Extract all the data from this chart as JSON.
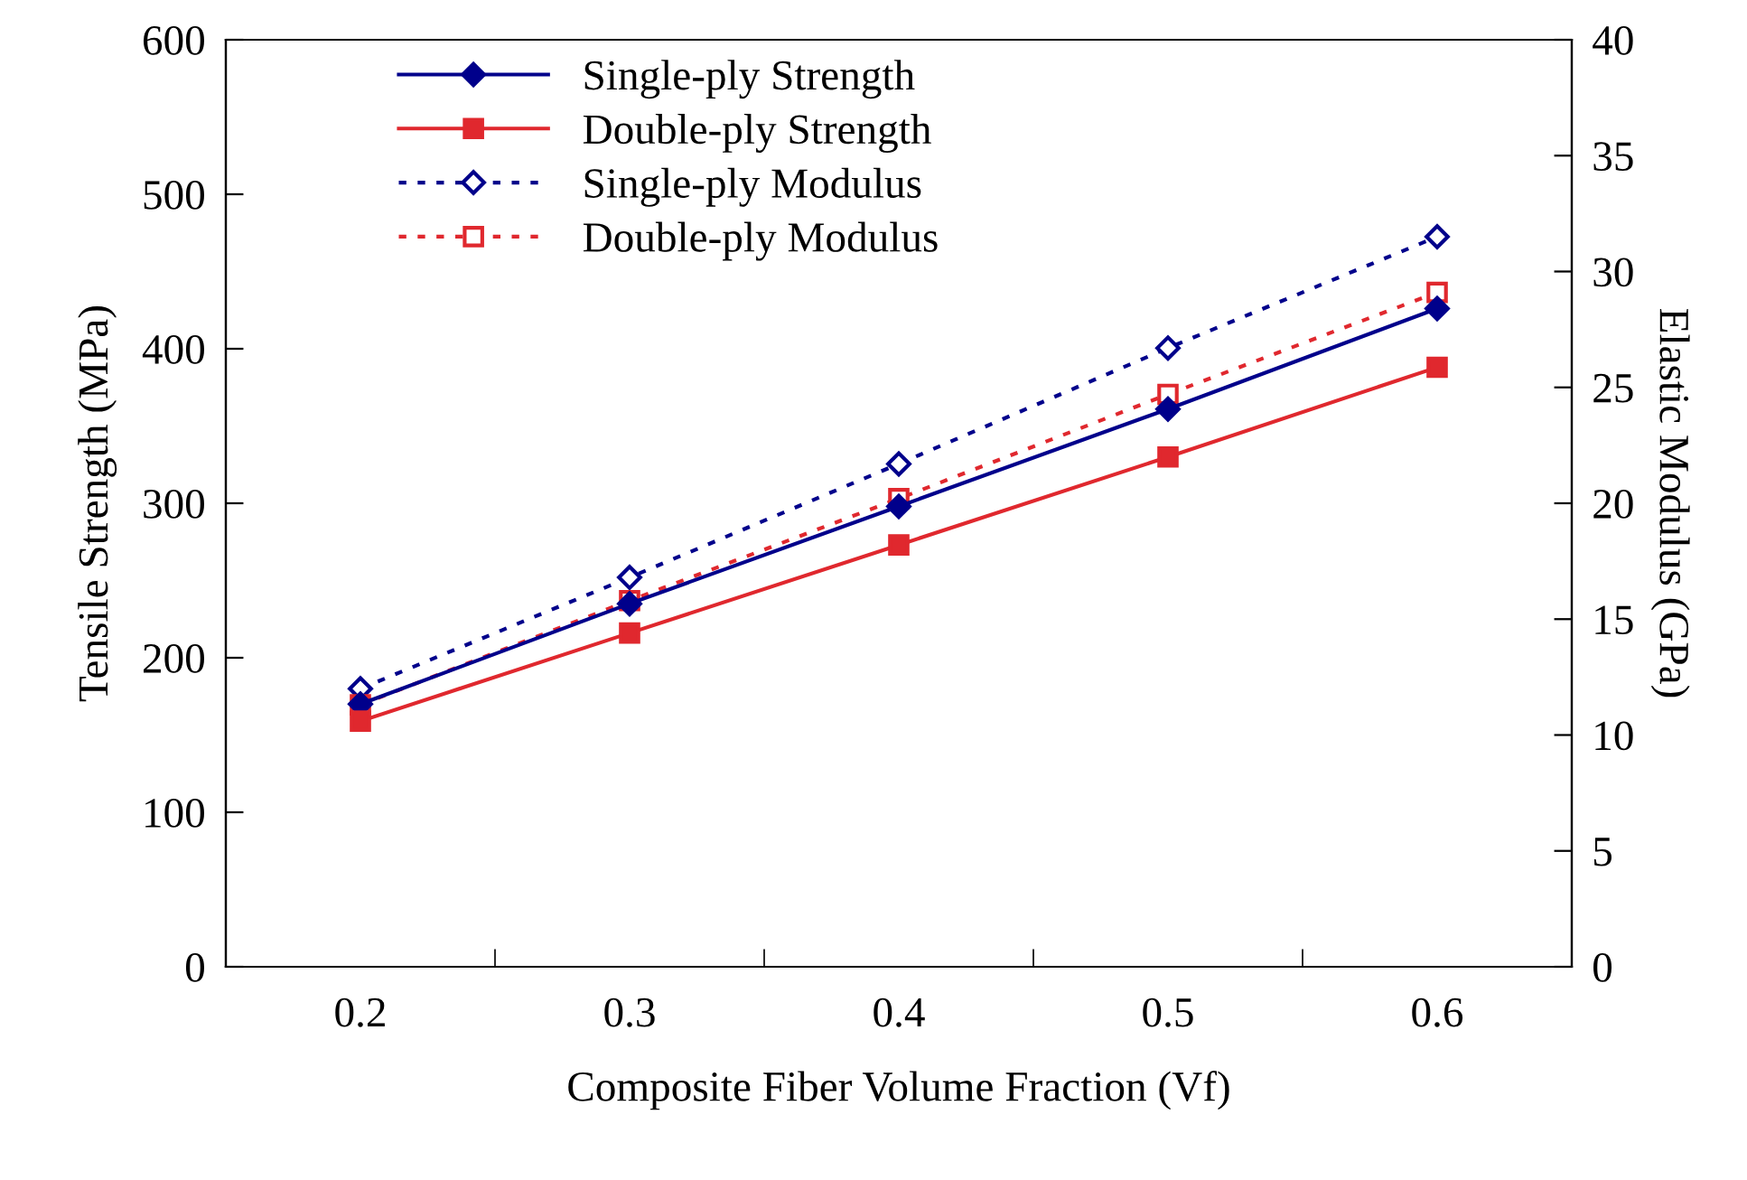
{
  "chart_data": {
    "type": "line",
    "xlabel": "Composite Fiber Volume Fraction (Vf)",
    "ylabel": "Tensile Strength (MPa)",
    "y2label": "Elastic Modulus (GPa)",
    "categories": [
      "0.2",
      "0.3",
      "0.4",
      "0.5",
      "0.6"
    ],
    "ylim": [
      0,
      600
    ],
    "yticks": [
      0,
      100,
      200,
      300,
      400,
      500,
      600
    ],
    "y2lim": [
      0,
      40
    ],
    "y2ticks": [
      0,
      5,
      10,
      15,
      20,
      25,
      30,
      35,
      40
    ],
    "legend": "top left",
    "grid": false,
    "series": [
      {
        "name": "Single-ply Strength",
        "color": "#00008b",
        "values": [
          170,
          235,
          298,
          361,
          426
        ],
        "marker": "diamond",
        "line_style": "solid"
      },
      {
        "name": "Double-ply Strength",
        "color": "#e0282e",
        "values": [
          159,
          216,
          273,
          330,
          388
        ],
        "marker": "square",
        "line_style": "solid"
      },
      {
        "name": "Single-ply Modulus",
        "color": "#00008b",
        "values": [
          12.0,
          16.8,
          21.7,
          26.7,
          31.5
        ],
        "marker": "diamond",
        "line_style": "dotted",
        "axis": "y2"
      },
      {
        "name": "Double-ply Modulus",
        "color": "#e0282e",
        "values": [
          11.3,
          15.8,
          20.2,
          24.7,
          29.1
        ],
        "marker": "square",
        "line_style": "dotted",
        "axis": "y2"
      }
    ]
  }
}
